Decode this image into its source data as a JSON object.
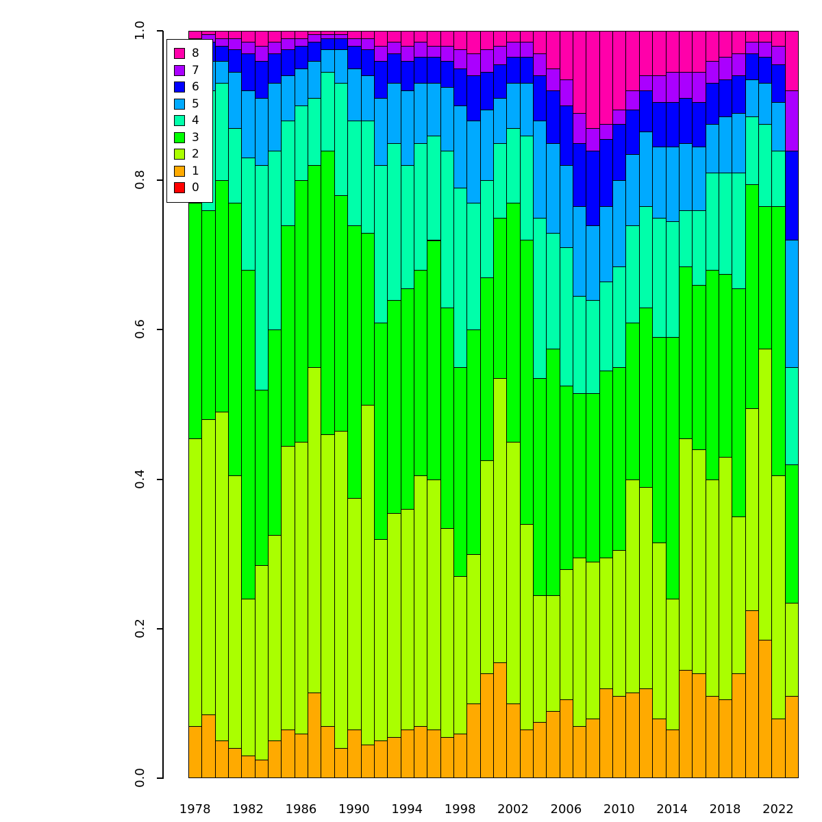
{
  "chart_data": {
    "type": "bar",
    "stacked": true,
    "normalized": true,
    "title": "",
    "xlabel": "",
    "ylabel": "",
    "ylim": [
      0,
      1
    ],
    "grid": false,
    "legend_position": "top-left",
    "y_ticks": [
      {
        "label": "0.0",
        "value": 0.0
      },
      {
        "label": "0.2",
        "value": 0.2
      },
      {
        "label": "0.4",
        "value": 0.4
      },
      {
        "label": "0.6",
        "value": 0.6
      },
      {
        "label": "0.8",
        "value": 0.8
      },
      {
        "label": "1.0",
        "value": 1.0
      }
    ],
    "x_tick_years": [
      "1978",
      "1982",
      "1986",
      "1990",
      "1994",
      "1998",
      "2002",
      "2006",
      "2010",
      "2014",
      "2018",
      "2022"
    ],
    "years": [
      1978,
      1979,
      1980,
      1981,
      1982,
      1983,
      1984,
      1985,
      1986,
      1987,
      1988,
      1989,
      1990,
      1991,
      1992,
      1993,
      1994,
      1995,
      1996,
      1997,
      1998,
      1999,
      2000,
      2001,
      2002,
      2003,
      2004,
      2005,
      2006,
      2007,
      2008,
      2009,
      2010,
      2011,
      2012,
      2013,
      2014,
      2015,
      2016,
      2017,
      2018,
      2019,
      2020,
      2021,
      2022,
      2023
    ],
    "legend": [
      {
        "label": "8",
        "color": "#FF00AA"
      },
      {
        "label": "7",
        "color": "#AA00FF"
      },
      {
        "label": "6",
        "color": "#0000FF"
      },
      {
        "label": "5",
        "color": "#00AAFF"
      },
      {
        "label": "4",
        "color": "#00FFAA"
      },
      {
        "label": "3",
        "color": "#00FF00"
      },
      {
        "label": "2",
        "color": "#AAFF00"
      },
      {
        "label": "1",
        "color": "#FFAA00"
      },
      {
        "label": "0",
        "color": "#FF0000"
      }
    ],
    "series": [
      {
        "name": "0",
        "color": "#FF0000",
        "values": [
          0,
          0,
          0,
          0,
          0,
          0,
          0,
          0,
          0,
          0,
          0,
          0,
          0,
          0,
          0,
          0,
          0,
          0,
          0,
          0,
          0,
          0,
          0,
          0,
          0,
          0,
          0,
          0,
          0,
          0,
          0,
          0,
          0,
          0,
          0,
          0,
          0,
          0,
          0,
          0,
          0,
          0,
          0,
          0,
          0,
          0
        ]
      },
      {
        "name": "1",
        "color": "#FFAA00",
        "values": [
          0.07,
          0.085,
          0.05,
          0.04,
          0.03,
          0.025,
          0.05,
          0.065,
          0.06,
          0.115,
          0.07,
          0.04,
          0.065,
          0.045,
          0.05,
          0.055,
          0.065,
          0.07,
          0.065,
          0.055,
          0.06,
          0.1,
          0.14,
          0.155,
          0.1,
          0.065,
          0.075,
          0.09,
          0.105,
          0.07,
          0.08,
          0.12,
          0.11,
          0.115,
          0.12,
          0.08,
          0.065,
          0.145,
          0.14,
          0.11,
          0.105,
          0.14,
          0.225,
          0.185,
          0.08,
          0.11
        ]
      },
      {
        "name": "2",
        "color": "#AAFF00",
        "values": [
          0.385,
          0.395,
          0.44,
          0.365,
          0.21,
          0.26,
          0.275,
          0.38,
          0.39,
          0.435,
          0.39,
          0.425,
          0.31,
          0.455,
          0.27,
          0.3,
          0.295,
          0.335,
          0.335,
          0.28,
          0.21,
          0.2,
          0.285,
          0.38,
          0.35,
          0.275,
          0.17,
          0.155,
          0.175,
          0.225,
          0.21,
          0.175,
          0.195,
          0.285,
          0.27,
          0.235,
          0.175,
          0.31,
          0.3,
          0.29,
          0.325,
          0.21,
          0.27,
          0.39,
          0.325,
          0.125
        ]
      },
      {
        "name": "3",
        "color": "#00FF00",
        "values": [
          0.315,
          0.28,
          0.31,
          0.365,
          0.44,
          0.235,
          0.275,
          0.295,
          0.35,
          0.27,
          0.38,
          0.315,
          0.365,
          0.23,
          0.29,
          0.285,
          0.295,
          0.275,
          0.32,
          0.295,
          0.28,
          0.3,
          0.245,
          0.215,
          0.32,
          0.38,
          0.29,
          0.33,
          0.245,
          0.22,
          0.225,
          0.25,
          0.245,
          0.21,
          0.24,
          0.275,
          0.35,
          0.23,
          0.22,
          0.28,
          0.245,
          0.305,
          0.3,
          0.19,
          0.36,
          0.185
        ]
      },
      {
        "name": "4",
        "color": "#00FFAA",
        "values": [
          0.16,
          0.16,
          0.13,
          0.1,
          0.15,
          0.3,
          0.24,
          0.14,
          0.1,
          0.09,
          0.105,
          0.15,
          0.14,
          0.15,
          0.21,
          0.21,
          0.165,
          0.17,
          0.14,
          0.21,
          0.24,
          0.17,
          0.13,
          0.1,
          0.1,
          0.14,
          0.215,
          0.155,
          0.185,
          0.13,
          0.125,
          0.12,
          0.135,
          0.13,
          0.135,
          0.16,
          0.155,
          0.075,
          0.1,
          0.13,
          0.135,
          0.155,
          0.09,
          0.11,
          0.075,
          0.13
        ]
      },
      {
        "name": "5",
        "color": "#00AAFF",
        "values": [
          0.035,
          0.04,
          0.03,
          0.075,
          0.09,
          0.09,
          0.09,
          0.06,
          0.05,
          0.05,
          0.03,
          0.045,
          0.07,
          0.06,
          0.09,
          0.08,
          0.1,
          0.08,
          0.07,
          0.085,
          0.11,
          0.11,
          0.095,
          0.06,
          0.06,
          0.07,
          0.13,
          0.12,
          0.11,
          0.12,
          0.1,
          0.1,
          0.115,
          0.095,
          0.1,
          0.095,
          0.1,
          0.09,
          0.085,
          0.065,
          0.075,
          0.08,
          0.05,
          0.055,
          0.065,
          0.17
        ]
      },
      {
        "name": "6",
        "color": "#0000FF",
        "values": [
          0.02,
          0.025,
          0.02,
          0.03,
          0.05,
          0.05,
          0.04,
          0.035,
          0.03,
          0.025,
          0.015,
          0.015,
          0.03,
          0.035,
          0.05,
          0.04,
          0.04,
          0.035,
          0.035,
          0.035,
          0.05,
          0.06,
          0.05,
          0.045,
          0.035,
          0.035,
          0.06,
          0.07,
          0.08,
          0.085,
          0.1,
          0.09,
          0.075,
          0.06,
          0.055,
          0.06,
          0.06,
          0.06,
          0.06,
          0.055,
          0.05,
          0.05,
          0.035,
          0.035,
          0.05,
          0.12
        ]
      },
      {
        "name": "7",
        "color": "#AA00FF",
        "values": [
          0.005,
          0.01,
          0.01,
          0.015,
          0.015,
          0.02,
          0.015,
          0.015,
          0.01,
          0.01,
          0.005,
          0.005,
          0.01,
          0.015,
          0.02,
          0.015,
          0.02,
          0.02,
          0.015,
          0.02,
          0.025,
          0.03,
          0.03,
          0.025,
          0.02,
          0.02,
          0.03,
          0.03,
          0.035,
          0.04,
          0.03,
          0.02,
          0.02,
          0.025,
          0.02,
          0.035,
          0.04,
          0.035,
          0.04,
          0.03,
          0.03,
          0.03,
          0.015,
          0.02,
          0.025,
          0.08
        ]
      },
      {
        "name": "8",
        "color": "#FF00AA",
        "values": [
          0.01,
          0.005,
          0.01,
          0.01,
          0.015,
          0.02,
          0.015,
          0.01,
          0.01,
          0.005,
          0.005,
          0.005,
          0.01,
          0.01,
          0.02,
          0.015,
          0.02,
          0.015,
          0.02,
          0.02,
          0.025,
          0.03,
          0.025,
          0.02,
          0.015,
          0.015,
          0.03,
          0.05,
          0.065,
          0.11,
          0.13,
          0.125,
          0.105,
          0.08,
          0.06,
          0.06,
          0.055,
          0.055,
          0.055,
          0.04,
          0.035,
          0.03,
          0.015,
          0.015,
          0.02,
          0.08
        ]
      }
    ]
  }
}
